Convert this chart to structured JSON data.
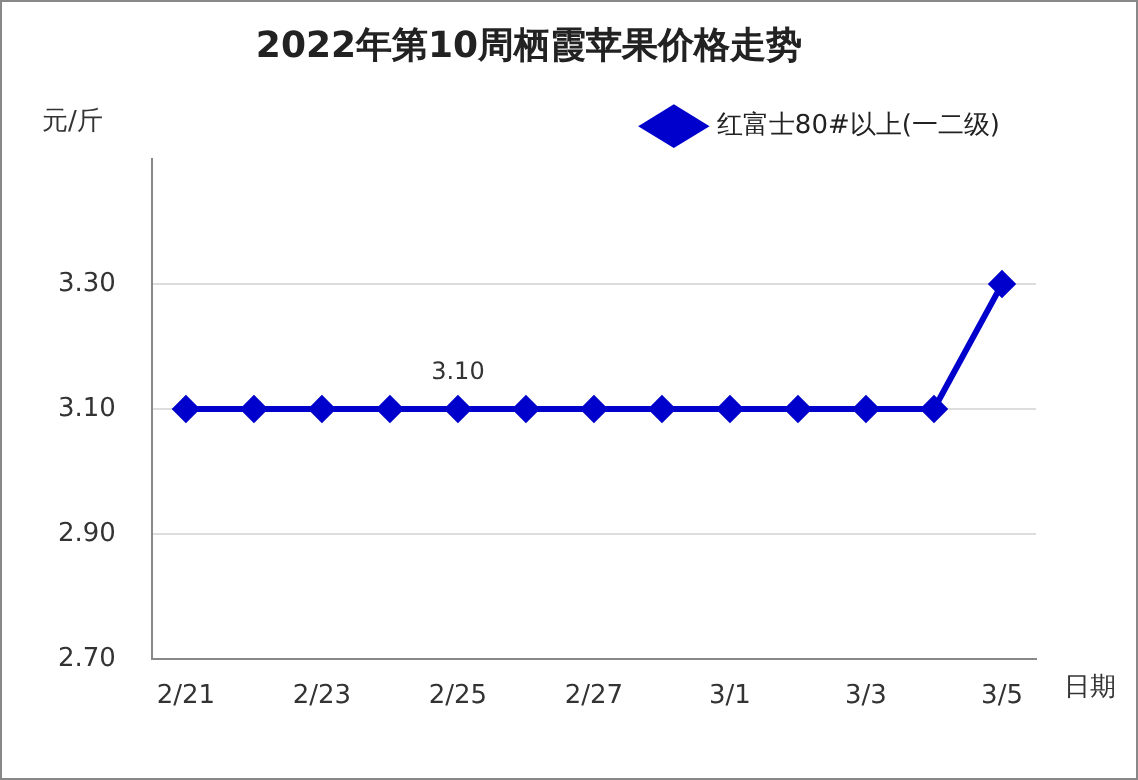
{
  "chart_data": {
    "type": "line",
    "title": "2022年第10周栖霞苹果价格走势",
    "ylabel": "元/斤",
    "xlabel": "日期",
    "categories": [
      "2/21",
      null,
      "2/23",
      null,
      "2/25",
      null,
      "2/27",
      null,
      "3/1",
      null,
      "3/3",
      null,
      "3/5"
    ],
    "series": [
      {
        "name": "红富士80#以上(一二级)",
        "color": "#0000cc",
        "values": [
          3.1,
          3.1,
          3.1,
          3.1,
          3.1,
          3.1,
          3.1,
          3.1,
          3.1,
          3.1,
          3.1,
          3.1,
          3.3
        ],
        "value_labels": [
          null,
          null,
          null,
          null,
          "3.10",
          null,
          null,
          null,
          null,
          null,
          null,
          null,
          null
        ]
      }
    ],
    "ylim": [
      2.7,
      3.5
    ],
    "yticks": [
      {
        "value": 2.7,
        "label": "2.70"
      },
      {
        "value": 2.9,
        "label": "2.90"
      },
      {
        "value": 3.1,
        "label": "3.10"
      },
      {
        "value": 3.3,
        "label": "3.30"
      }
    ],
    "grid": "y",
    "legend": "top right",
    "marker": "diamond",
    "line_style": "solid"
  }
}
